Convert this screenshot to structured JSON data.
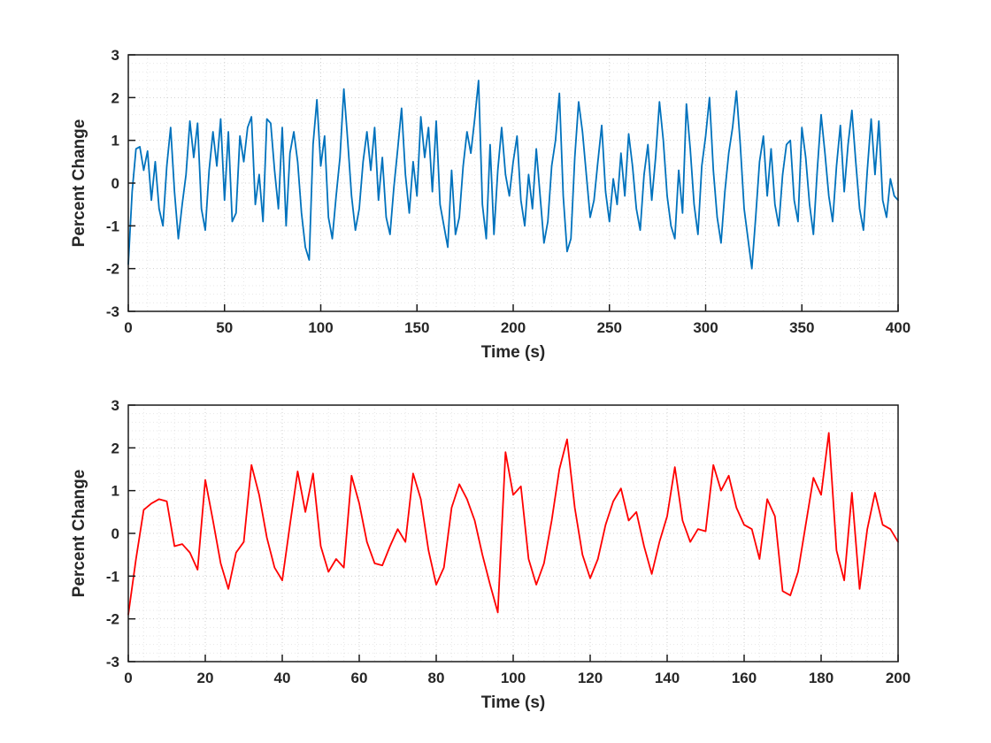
{
  "figure": {
    "background": "#ffffff"
  },
  "chart_data": [
    {
      "type": "line",
      "title": "",
      "xlabel": "Time (s)",
      "ylabel": "Percent Change",
      "legend": null,
      "grid": "dotted-major-and-minor",
      "line_color": "#0072bd",
      "xlim": [
        0,
        400
      ],
      "ylim": [
        -3,
        3
      ],
      "xticks": [
        0,
        50,
        100,
        150,
        200,
        250,
        300,
        350,
        400
      ],
      "yticks": [
        -3,
        -2,
        -1,
        0,
        1,
        2,
        3
      ],
      "x_minor_step": 10,
      "y_minor_step": 0.2,
      "x_start": 0,
      "x_step": 2,
      "values": [
        -1.9,
        -0.2,
        0.8,
        0.85,
        0.3,
        0.75,
        -0.4,
        0.5,
        -0.6,
        -1.0,
        0.4,
        1.3,
        -0.2,
        -1.3,
        -0.5,
        0.2,
        1.45,
        0.6,
        1.4,
        -0.6,
        -1.1,
        0.3,
        1.2,
        0.4,
        1.5,
        -0.4,
        1.2,
        -0.9,
        -0.7,
        1.1,
        0.5,
        1.3,
        1.55,
        -0.5,
        0.2,
        -0.9,
        1.5,
        1.4,
        0.3,
        -0.6,
        1.3,
        -1.0,
        0.7,
        1.2,
        0.5,
        -0.7,
        -1.5,
        -1.8,
        0.9,
        1.95,
        0.4,
        1.1,
        -0.8,
        -1.3,
        -0.3,
        0.6,
        2.2,
        1.0,
        -0.3,
        -1.1,
        -0.6,
        0.5,
        1.2,
        0.3,
        1.3,
        -0.4,
        0.6,
        -0.8,
        -1.2,
        -0.1,
        0.8,
        1.75,
        0.2,
        -0.7,
        0.5,
        -0.3,
        1.55,
        0.6,
        1.3,
        -0.2,
        1.45,
        -0.5,
        -1.0,
        -1.5,
        0.3,
        -1.2,
        -0.8,
        0.4,
        1.2,
        0.7,
        1.5,
        2.4,
        -0.5,
        -1.3,
        0.9,
        -1.2,
        0.3,
        1.3,
        0.2,
        -0.3,
        0.5,
        1.1,
        -0.4,
        -1.0,
        0.2,
        -0.6,
        0.8,
        -0.3,
        -1.4,
        -0.9,
        0.4,
        1.0,
        2.1,
        -0.3,
        -1.6,
        -1.3,
        0.6,
        1.9,
        1.2,
        0.2,
        -0.8,
        -0.4,
        0.5,
        1.35,
        -0.2,
        -0.9,
        0.1,
        -0.5,
        0.7,
        -0.3,
        1.15,
        0.4,
        -0.6,
        -1.1,
        0.2,
        0.9,
        -0.4,
        0.6,
        1.9,
        1.0,
        -0.3,
        -1.0,
        -1.3,
        0.3,
        -0.7,
        1.85,
        0.8,
        -0.5,
        -1.2,
        0.4,
        1.1,
        2.0,
        0.3,
        -0.8,
        -1.4,
        -0.2,
        0.7,
        1.3,
        2.15,
        0.9,
        -0.6,
        -1.3,
        -2.0,
        -0.8,
        0.5,
        1.1,
        -0.3,
        0.8,
        -0.5,
        -1.0,
        0.2,
        0.9,
        1.0,
        -0.4,
        -0.9,
        1.3,
        0.6,
        -0.5,
        -1.2,
        0.3,
        1.6,
        0.7,
        -0.3,
        -0.9,
        0.4,
        1.35,
        -0.2,
        0.9,
        1.7,
        0.5,
        -0.6,
        -1.1,
        0.3,
        1.5,
        0.2,
        1.45,
        -0.4,
        -0.8,
        0.1,
        -0.3,
        -0.4
      ]
    },
    {
      "type": "line",
      "title": "",
      "xlabel": "Time (s)",
      "ylabel": "Percent Change",
      "legend": null,
      "grid": "dotted-major-and-minor",
      "line_color": "#ff0000",
      "xlim": [
        0,
        200
      ],
      "ylim": [
        -3,
        3
      ],
      "xticks": [
        0,
        20,
        40,
        60,
        80,
        100,
        120,
        140,
        160,
        180,
        200
      ],
      "yticks": [
        -3,
        -2,
        -1,
        0,
        1,
        2,
        3
      ],
      "x_minor_step": 4,
      "y_minor_step": 0.2,
      "x_start": 0,
      "x_step": 2,
      "values": [
        -1.9,
        -0.6,
        0.55,
        0.7,
        0.8,
        0.75,
        -0.3,
        -0.25,
        -0.45,
        -0.85,
        1.25,
        0.3,
        -0.7,
        -1.3,
        -0.45,
        -0.2,
        1.6,
        0.9,
        -0.1,
        -0.8,
        -1.1,
        0.2,
        1.45,
        0.5,
        1.4,
        -0.3,
        -0.9,
        -0.6,
        -0.8,
        1.35,
        0.7,
        -0.2,
        -0.7,
        -0.75,
        -0.3,
        0.1,
        -0.2,
        1.4,
        0.8,
        -0.4,
        -1.2,
        -0.8,
        0.6,
        1.15,
        0.8,
        0.3,
        -0.5,
        -1.2,
        -1.85,
        1.9,
        0.9,
        1.1,
        -0.6,
        -1.2,
        -0.7,
        0.3,
        1.5,
        2.2,
        0.6,
        -0.5,
        -1.05,
        -0.6,
        0.2,
        0.75,
        1.05,
        0.3,
        0.5,
        -0.3,
        -0.95,
        -0.2,
        0.4,
        1.55,
        0.3,
        -0.2,
        0.1,
        0.05,
        1.6,
        1.0,
        1.35,
        0.6,
        0.2,
        0.1,
        -0.6,
        0.8,
        0.4,
        -1.35,
        -1.45,
        -0.9,
        0.2,
        1.3,
        0.9,
        2.35,
        -0.4,
        -1.1,
        0.95,
        -1.3,
        0.1,
        0.95,
        0.2,
        0.1,
        -0.2
      ]
    }
  ],
  "style": {
    "tick_label_color": "#262626",
    "axis_box_color": "#1a1a1a",
    "major_grid_color": "rgba(38,38,38,0.22)",
    "minor_grid_color": "rgba(38,38,38,0.11)"
  }
}
